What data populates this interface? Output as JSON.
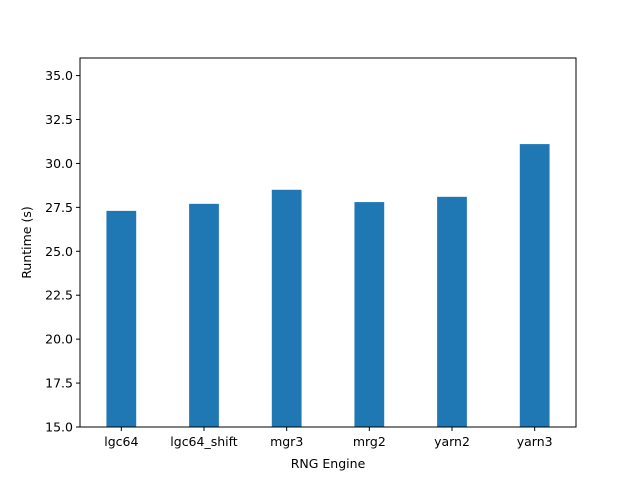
{
  "chart_data": {
    "type": "bar",
    "title": "",
    "xlabel": "RNG Engine",
    "ylabel": "Runtime (s)",
    "categories": [
      "lgc64",
      "lgc64_shift",
      "mgr3",
      "mrg2",
      "yarn2",
      "yarn3"
    ],
    "values": [
      27.3,
      27.7,
      28.5,
      27.8,
      28.1,
      31.1
    ],
    "ylim": [
      15.0,
      36.0
    ],
    "yticks": [
      "15.0",
      "17.5",
      "20.0",
      "22.5",
      "25.0",
      "27.5",
      "30.0",
      "32.5",
      "35.0"
    ],
    "bar_color": "#1f77b4",
    "grid": false,
    "legend": "none"
  }
}
